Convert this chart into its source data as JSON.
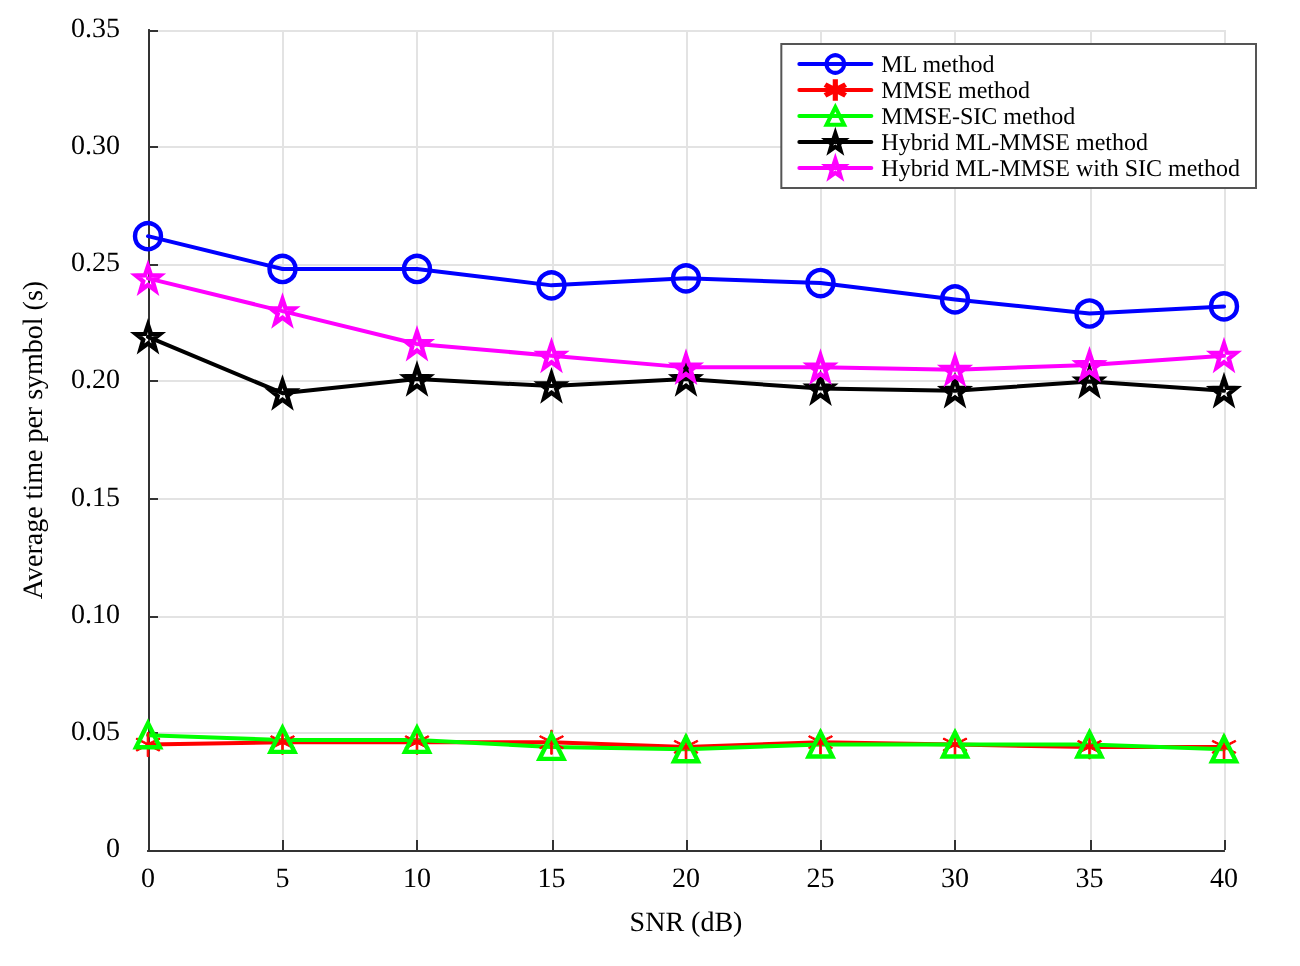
{
  "chart_data": {
    "type": "line",
    "xlabel": "SNR (dB)",
    "ylabel": "Average time per symbol (s)",
    "x": [
      0,
      5,
      10,
      15,
      20,
      25,
      30,
      35,
      40
    ],
    "xlim": [
      0,
      40
    ],
    "xticks": [
      0,
      5,
      10,
      15,
      20,
      25,
      30,
      35,
      40
    ],
    "ylim": [
      0,
      0.35
    ],
    "yticks": [
      0,
      0.05,
      {
        "value": 0.1,
        "label": "0.10"
      },
      0.15,
      {
        "value": 0.2,
        "label": "0.20"
      },
      0.25,
      {
        "value": 0.3,
        "label": "0.30"
      },
      0.35
    ],
    "grid": true,
    "legend": "top right",
    "line_style": "solid",
    "series": [
      {
        "name": "ML method",
        "color": "#0000ff",
        "marker": "circle",
        "values": [
          0.262,
          0.248,
          0.248,
          0.241,
          0.244,
          0.242,
          0.235,
          0.229,
          0.232
        ]
      },
      {
        "name": "MMSE method",
        "color": "#ff0000",
        "marker": "cross",
        "values": [
          0.045,
          0.046,
          0.046,
          0.046,
          0.044,
          0.046,
          0.045,
          0.044,
          0.044
        ]
      },
      {
        "name": "MMSE-SIC method",
        "color": "#00ff00",
        "marker": "triangle",
        "values": [
          0.049,
          0.047,
          0.047,
          0.044,
          0.043,
          0.045,
          0.045,
          0.045,
          0.043
        ]
      },
      {
        "name": "Hybrid ML-MMSE method",
        "color": "#000000",
        "marker": "star",
        "values": [
          0.219,
          0.195,
          0.201,
          0.198,
          0.201,
          0.197,
          0.196,
          0.2,
          0.196
        ]
      },
      {
        "name": "Hybrid ML-MMSE with SIC method",
        "color": "#ff00ff",
        "marker": "star",
        "values": [
          0.244,
          0.23,
          0.216,
          0.211,
          0.206,
          0.206,
          0.205,
          0.207,
          0.211
        ]
      }
    ]
  }
}
